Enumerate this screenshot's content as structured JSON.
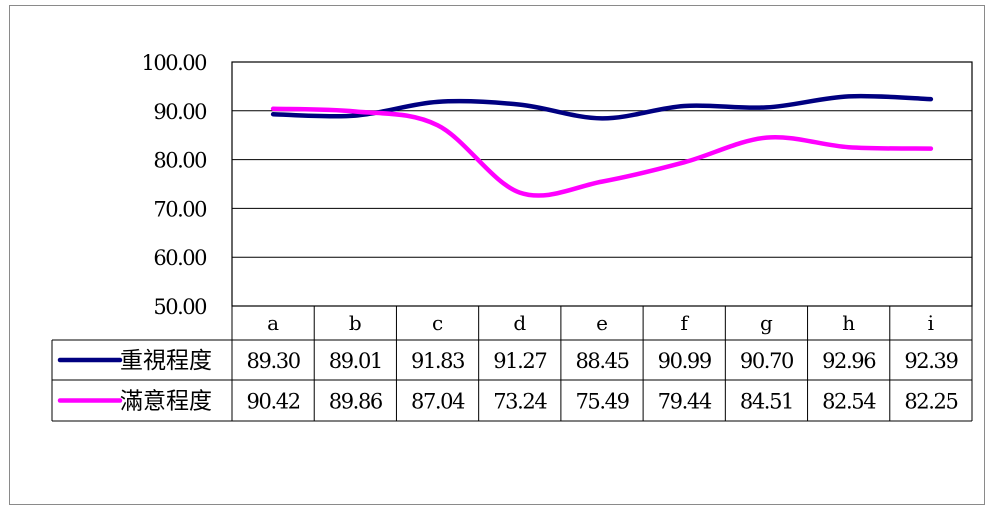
{
  "chart_data": {
    "type": "line",
    "categories": [
      "a",
      "b",
      "c",
      "d",
      "e",
      "f",
      "g",
      "h",
      "i"
    ],
    "series": [
      {
        "name": "重視程度",
        "color": "#000080",
        "values": [
          89.3,
          89.01,
          91.83,
          91.27,
          88.45,
          90.99,
          90.7,
          92.96,
          92.39
        ],
        "labels": [
          "89.30",
          "89.01",
          "91.83",
          "91.27",
          "88.45",
          "90.99",
          "90.70",
          "92.96",
          "92.39"
        ]
      },
      {
        "name": "滿意程度",
        "color": "#ff00ff",
        "values": [
          90.42,
          89.86,
          87.04,
          73.24,
          75.49,
          79.44,
          84.51,
          82.54,
          82.25
        ],
        "labels": [
          "90.42",
          "89.86",
          "87.04",
          "73.24",
          "75.49",
          "79.44",
          "84.51",
          "82.54",
          "82.25"
        ]
      }
    ],
    "ylim": [
      50,
      100
    ],
    "yticks": [
      "100.00",
      "90.00",
      "80.00",
      "70.00",
      "60.00",
      "50.00"
    ],
    "grid": true,
    "data_table": true,
    "smooth": true
  }
}
